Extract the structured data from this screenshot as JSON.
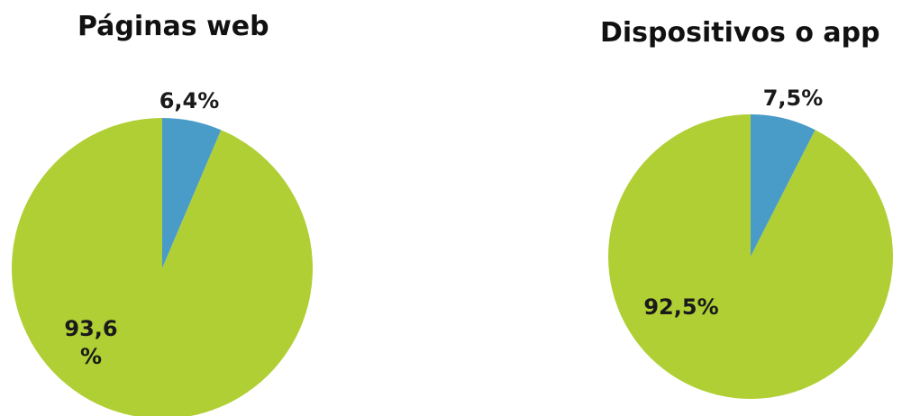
{
  "chart_data": [
    {
      "type": "pie",
      "title": "Páginas web",
      "slices": [
        {
          "value": 6.4,
          "label": "6,4%",
          "color": "#4a9cc8"
        },
        {
          "value": 93.6,
          "label": "93,6 %",
          "label_lines": [
            "93,6",
            "%"
          ],
          "color": "#b0cf34"
        }
      ]
    },
    {
      "type": "pie",
      "title": "Dispositivos o app",
      "slices": [
        {
          "value": 7.5,
          "label": "7,5%",
          "color": "#4a9cc8"
        },
        {
          "value": 92.5,
          "label": "92,5%",
          "color": "#b0cf34"
        }
      ]
    }
  ]
}
